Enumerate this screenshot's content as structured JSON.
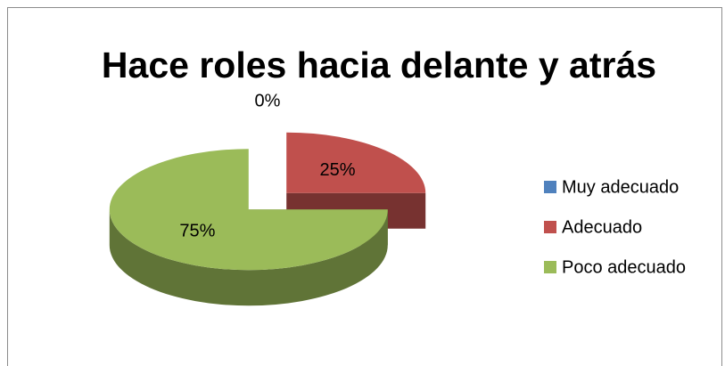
{
  "chart_data": {
    "type": "pie",
    "title": "Hace roles hacia delante y atrás",
    "categories": [
      "Muy adecuado",
      "Adecuado",
      "Poco adecuado"
    ],
    "values": [
      0,
      25,
      75
    ],
    "value_labels": [
      "0%",
      "25%",
      "75%"
    ],
    "colors": [
      "#4f81bd",
      "#c0504d",
      "#9bbb59"
    ],
    "legend": "right"
  }
}
